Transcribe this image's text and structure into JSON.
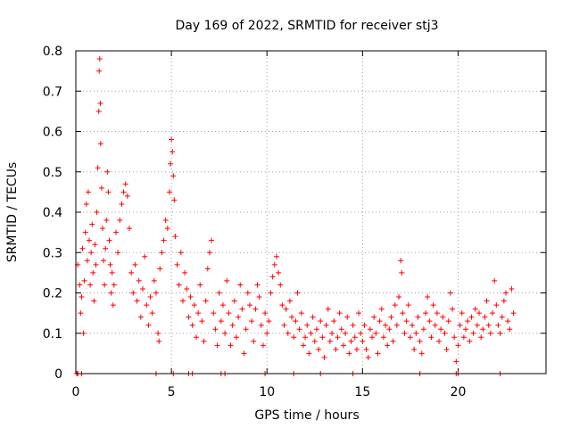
{
  "chart_data": {
    "type": "scatter",
    "title": "Day 169 of 2022, SRMTID for receiver stj3",
    "xlabel": "GPS time / hours",
    "ylabel": "SRMTID / TECUs",
    "xlim": [
      0,
      24.6
    ],
    "ylim": [
      0,
      0.8
    ],
    "x_ticks": [
      0,
      5,
      10,
      15,
      20
    ],
    "x_tick_labels": [
      "0",
      "5",
      "10",
      "15",
      "20"
    ],
    "y_ticks": [
      0,
      0.1,
      0.2,
      0.3,
      0.4,
      0.5,
      0.6,
      0.7,
      0.8
    ],
    "y_tick_labels": [
      "0",
      "0.1",
      "0.2",
      "0.3",
      "0.4",
      "0.5",
      "0.6",
      "0.7",
      "0.8"
    ],
    "grid": true,
    "marker": "+",
    "marker_color": "#ff0000",
    "series": [
      {
        "name": "SRMTID",
        "points": [
          [
            0.05,
            0.0
          ],
          [
            0.1,
            0.0
          ],
          [
            0.3,
            0.0
          ],
          [
            0.1,
            0.27
          ],
          [
            0.2,
            0.22
          ],
          [
            0.25,
            0.15
          ],
          [
            0.3,
            0.19
          ],
          [
            0.35,
            0.31
          ],
          [
            0.4,
            0.1
          ],
          [
            0.45,
            0.23
          ],
          [
            0.5,
            0.35
          ],
          [
            0.55,
            0.42
          ],
          [
            0.6,
            0.28
          ],
          [
            0.65,
            0.45
          ],
          [
            0.7,
            0.33
          ],
          [
            0.75,
            0.22
          ],
          [
            0.8,
            0.3
          ],
          [
            0.85,
            0.37
          ],
          [
            0.9,
            0.25
          ],
          [
            0.95,
            0.18
          ],
          [
            1.0,
            0.32
          ],
          [
            1.05,
            0.27
          ],
          [
            1.1,
            0.4
          ],
          [
            1.15,
            0.51
          ],
          [
            1.2,
            0.65
          ],
          [
            1.22,
            0.75
          ],
          [
            1.25,
            0.78
          ],
          [
            1.28,
            0.67
          ],
          [
            1.3,
            0.57
          ],
          [
            1.35,
            0.46
          ],
          [
            1.4,
            0.36
          ],
          [
            1.45,
            0.28
          ],
          [
            1.5,
            0.22
          ],
          [
            1.55,
            0.31
          ],
          [
            1.6,
            0.38
          ],
          [
            1.65,
            0.5
          ],
          [
            1.7,
            0.45
          ],
          [
            1.75,
            0.33
          ],
          [
            1.8,
            0.27
          ],
          [
            1.85,
            0.2
          ],
          [
            1.9,
            0.25
          ],
          [
            1.95,
            0.17
          ],
          [
            2.0,
            0.22
          ],
          [
            2.1,
            0.35
          ],
          [
            2.2,
            0.3
          ],
          [
            2.3,
            0.38
          ],
          [
            2.4,
            0.42
          ],
          [
            2.5,
            0.45
          ],
          [
            2.6,
            0.47
          ],
          [
            2.7,
            0.44
          ],
          [
            2.8,
            0.36
          ],
          [
            2.9,
            0.25
          ],
          [
            3.0,
            0.2
          ],
          [
            3.1,
            0.27
          ],
          [
            3.2,
            0.18
          ],
          [
            3.3,
            0.23
          ],
          [
            3.4,
            0.14
          ],
          [
            3.5,
            0.21
          ],
          [
            3.6,
            0.29
          ],
          [
            3.7,
            0.17
          ],
          [
            3.8,
            0.12
          ],
          [
            3.9,
            0.19
          ],
          [
            4.0,
            0.15
          ],
          [
            4.1,
            0.23
          ],
          [
            4.2,
            0.2
          ],
          [
            4.3,
            0.1
          ],
          [
            4.35,
            0.08
          ],
          [
            4.4,
            0.26
          ],
          [
            4.5,
            0.3
          ],
          [
            4.6,
            0.33
          ],
          [
            4.7,
            0.38
          ],
          [
            4.8,
            0.36
          ],
          [
            4.9,
            0.45
          ],
          [
            4.95,
            0.52
          ],
          [
            5.0,
            0.58
          ],
          [
            5.05,
            0.55
          ],
          [
            5.1,
            0.49
          ],
          [
            5.15,
            0.43
          ],
          [
            5.2,
            0.34
          ],
          [
            5.3,
            0.27
          ],
          [
            5.4,
            0.22
          ],
          [
            5.5,
            0.3
          ],
          [
            5.6,
            0.18
          ],
          [
            5.7,
            0.25
          ],
          [
            5.8,
            0.21
          ],
          [
            5.9,
            0.14
          ],
          [
            6.0,
            0.19
          ],
          [
            6.1,
            0.12
          ],
          [
            6.2,
            0.17
          ],
          [
            6.3,
            0.09
          ],
          [
            6.4,
            0.15
          ],
          [
            6.5,
            0.22
          ],
          [
            6.6,
            0.13
          ],
          [
            6.7,
            0.08
          ],
          [
            6.8,
            0.18
          ],
          [
            6.9,
            0.26
          ],
          [
            7.0,
            0.3
          ],
          [
            7.1,
            0.33
          ],
          [
            7.2,
            0.15
          ],
          [
            7.3,
            0.11
          ],
          [
            7.4,
            0.07
          ],
          [
            7.5,
            0.2
          ],
          [
            7.6,
            0.13
          ],
          [
            7.7,
            0.17
          ],
          [
            7.8,
            0.1
          ],
          [
            7.9,
            0.23
          ],
          [
            8.0,
            0.15
          ],
          [
            8.1,
            0.07
          ],
          [
            8.2,
            0.12
          ],
          [
            8.3,
            0.18
          ],
          [
            8.4,
            0.09
          ],
          [
            8.5,
            0.14
          ],
          [
            8.6,
            0.22
          ],
          [
            8.7,
            0.16
          ],
          [
            8.8,
            0.05
          ],
          [
            8.9,
            0.11
          ],
          [
            9.0,
            0.2
          ],
          [
            9.1,
            0.17
          ],
          [
            9.2,
            0.13
          ],
          [
            9.3,
            0.08
          ],
          [
            9.4,
            0.16
          ],
          [
            9.5,
            0.22
          ],
          [
            9.6,
            0.19
          ],
          [
            9.7,
            0.12
          ],
          [
            9.8,
            0.07
          ],
          [
            9.9,
            0.15
          ],
          [
            10.0,
            0.1
          ],
          [
            10.1,
            0.13
          ],
          [
            10.2,
            0.2
          ],
          [
            10.3,
            0.24
          ],
          [
            10.4,
            0.27
          ],
          [
            10.5,
            0.29
          ],
          [
            10.6,
            0.25
          ],
          [
            10.7,
            0.22
          ],
          [
            10.8,
            0.17
          ],
          [
            10.9,
            0.12
          ],
          [
            11.0,
            0.16
          ],
          [
            11.1,
            0.1
          ],
          [
            11.2,
            0.18
          ],
          [
            11.3,
            0.14
          ],
          [
            11.4,
            0.09
          ],
          [
            11.5,
            0.13
          ],
          [
            11.6,
            0.2
          ],
          [
            11.7,
            0.11
          ],
          [
            11.8,
            0.15
          ],
          [
            11.9,
            0.07
          ],
          [
            12.0,
            0.09
          ],
          [
            12.1,
            0.12
          ],
          [
            12.2,
            0.05
          ],
          [
            12.3,
            0.1
          ],
          [
            12.4,
            0.14
          ],
          [
            12.5,
            0.08
          ],
          [
            12.6,
            0.11
          ],
          [
            12.7,
            0.06
          ],
          [
            12.8,
            0.13
          ],
          [
            12.9,
            0.09
          ],
          [
            13.0,
            0.04
          ],
          [
            13.1,
            0.12
          ],
          [
            13.2,
            0.16
          ],
          [
            13.3,
            0.08
          ],
          [
            13.4,
            0.1
          ],
          [
            13.5,
            0.13
          ],
          [
            13.6,
            0.06
          ],
          [
            13.7,
            0.09
          ],
          [
            13.8,
            0.15
          ],
          [
            13.9,
            0.11
          ],
          [
            14.0,
            0.07
          ],
          [
            14.1,
            0.1
          ],
          [
            14.2,
            0.14
          ],
          [
            14.3,
            0.05
          ],
          [
            14.4,
            0.08
          ],
          [
            14.5,
            0.12
          ],
          [
            14.6,
            0.09
          ],
          [
            14.7,
            0.06
          ],
          [
            14.8,
            0.15
          ],
          [
            14.9,
            0.1
          ],
          [
            15.0,
            0.08
          ],
          [
            15.1,
            0.12
          ],
          [
            15.2,
            0.06
          ],
          [
            15.3,
            0.04
          ],
          [
            15.4,
            0.11
          ],
          [
            15.5,
            0.09
          ],
          [
            15.6,
            0.14
          ],
          [
            15.7,
            0.1
          ],
          [
            15.8,
            0.05
          ],
          [
            15.9,
            0.13
          ],
          [
            16.0,
            0.16
          ],
          [
            16.1,
            0.09
          ],
          [
            16.2,
            0.12
          ],
          [
            16.3,
            0.07
          ],
          [
            16.4,
            0.11
          ],
          [
            16.5,
            0.14
          ],
          [
            16.6,
            0.08
          ],
          [
            16.7,
            0.17
          ],
          [
            16.8,
            0.12
          ],
          [
            16.9,
            0.19
          ],
          [
            17.0,
            0.28
          ],
          [
            17.05,
            0.25
          ],
          [
            17.1,
            0.15
          ],
          [
            17.2,
            0.1
          ],
          [
            17.3,
            0.13
          ],
          [
            17.4,
            0.17
          ],
          [
            17.5,
            0.09
          ],
          [
            17.6,
            0.12
          ],
          [
            17.7,
            0.06
          ],
          [
            17.8,
            0.1
          ],
          [
            17.9,
            0.14
          ],
          [
            18.0,
            0.08
          ],
          [
            18.1,
            0.05
          ],
          [
            18.2,
            0.11
          ],
          [
            18.3,
            0.15
          ],
          [
            18.4,
            0.19
          ],
          [
            18.5,
            0.13
          ],
          [
            18.6,
            0.09
          ],
          [
            18.7,
            0.17
          ],
          [
            18.8,
            0.12
          ],
          [
            18.9,
            0.15
          ],
          [
            19.0,
            0.08
          ],
          [
            19.1,
            0.11
          ],
          [
            19.2,
            0.14
          ],
          [
            19.3,
            0.1
          ],
          [
            19.4,
            0.06
          ],
          [
            19.5,
            0.13
          ],
          [
            19.6,
            0.2
          ],
          [
            19.7,
            0.16
          ],
          [
            19.8,
            0.09
          ],
          [
            19.9,
            0.03
          ],
          [
            20.0,
            0.07
          ],
          [
            20.1,
            0.12
          ],
          [
            20.2,
            0.15
          ],
          [
            20.3,
            0.09
          ],
          [
            20.4,
            0.11
          ],
          [
            20.5,
            0.13
          ],
          [
            20.6,
            0.08
          ],
          [
            20.7,
            0.14
          ],
          [
            20.8,
            0.1
          ],
          [
            20.9,
            0.16
          ],
          [
            21.0,
            0.12
          ],
          [
            21.1,
            0.15
          ],
          [
            21.2,
            0.09
          ],
          [
            21.3,
            0.11
          ],
          [
            21.4,
            0.14
          ],
          [
            21.5,
            0.18
          ],
          [
            21.6,
            0.12
          ],
          [
            21.7,
            0.1
          ],
          [
            21.8,
            0.15
          ],
          [
            21.9,
            0.23
          ],
          [
            22.0,
            0.17
          ],
          [
            22.1,
            0.12
          ],
          [
            22.2,
            0.1
          ],
          [
            22.3,
            0.14
          ],
          [
            22.4,
            0.18
          ],
          [
            22.5,
            0.2
          ],
          [
            22.6,
            0.13
          ],
          [
            22.7,
            0.11
          ],
          [
            22.8,
            0.21
          ],
          [
            22.9,
            0.15
          ],
          [
            4.2,
            0.0
          ],
          [
            5.1,
            0.0
          ],
          [
            5.9,
            0.0
          ],
          [
            6.1,
            0.0
          ],
          [
            7.6,
            0.0
          ],
          [
            7.8,
            0.0
          ],
          [
            9.9,
            0.0
          ],
          [
            11.4,
            0.0
          ],
          [
            12.8,
            0.0
          ],
          [
            14.5,
            0.0
          ],
          [
            18.0,
            0.0
          ],
          [
            19.9,
            0.0
          ],
          [
            20.0,
            0.0
          ],
          [
            22.2,
            0.0
          ]
        ]
      }
    ]
  }
}
